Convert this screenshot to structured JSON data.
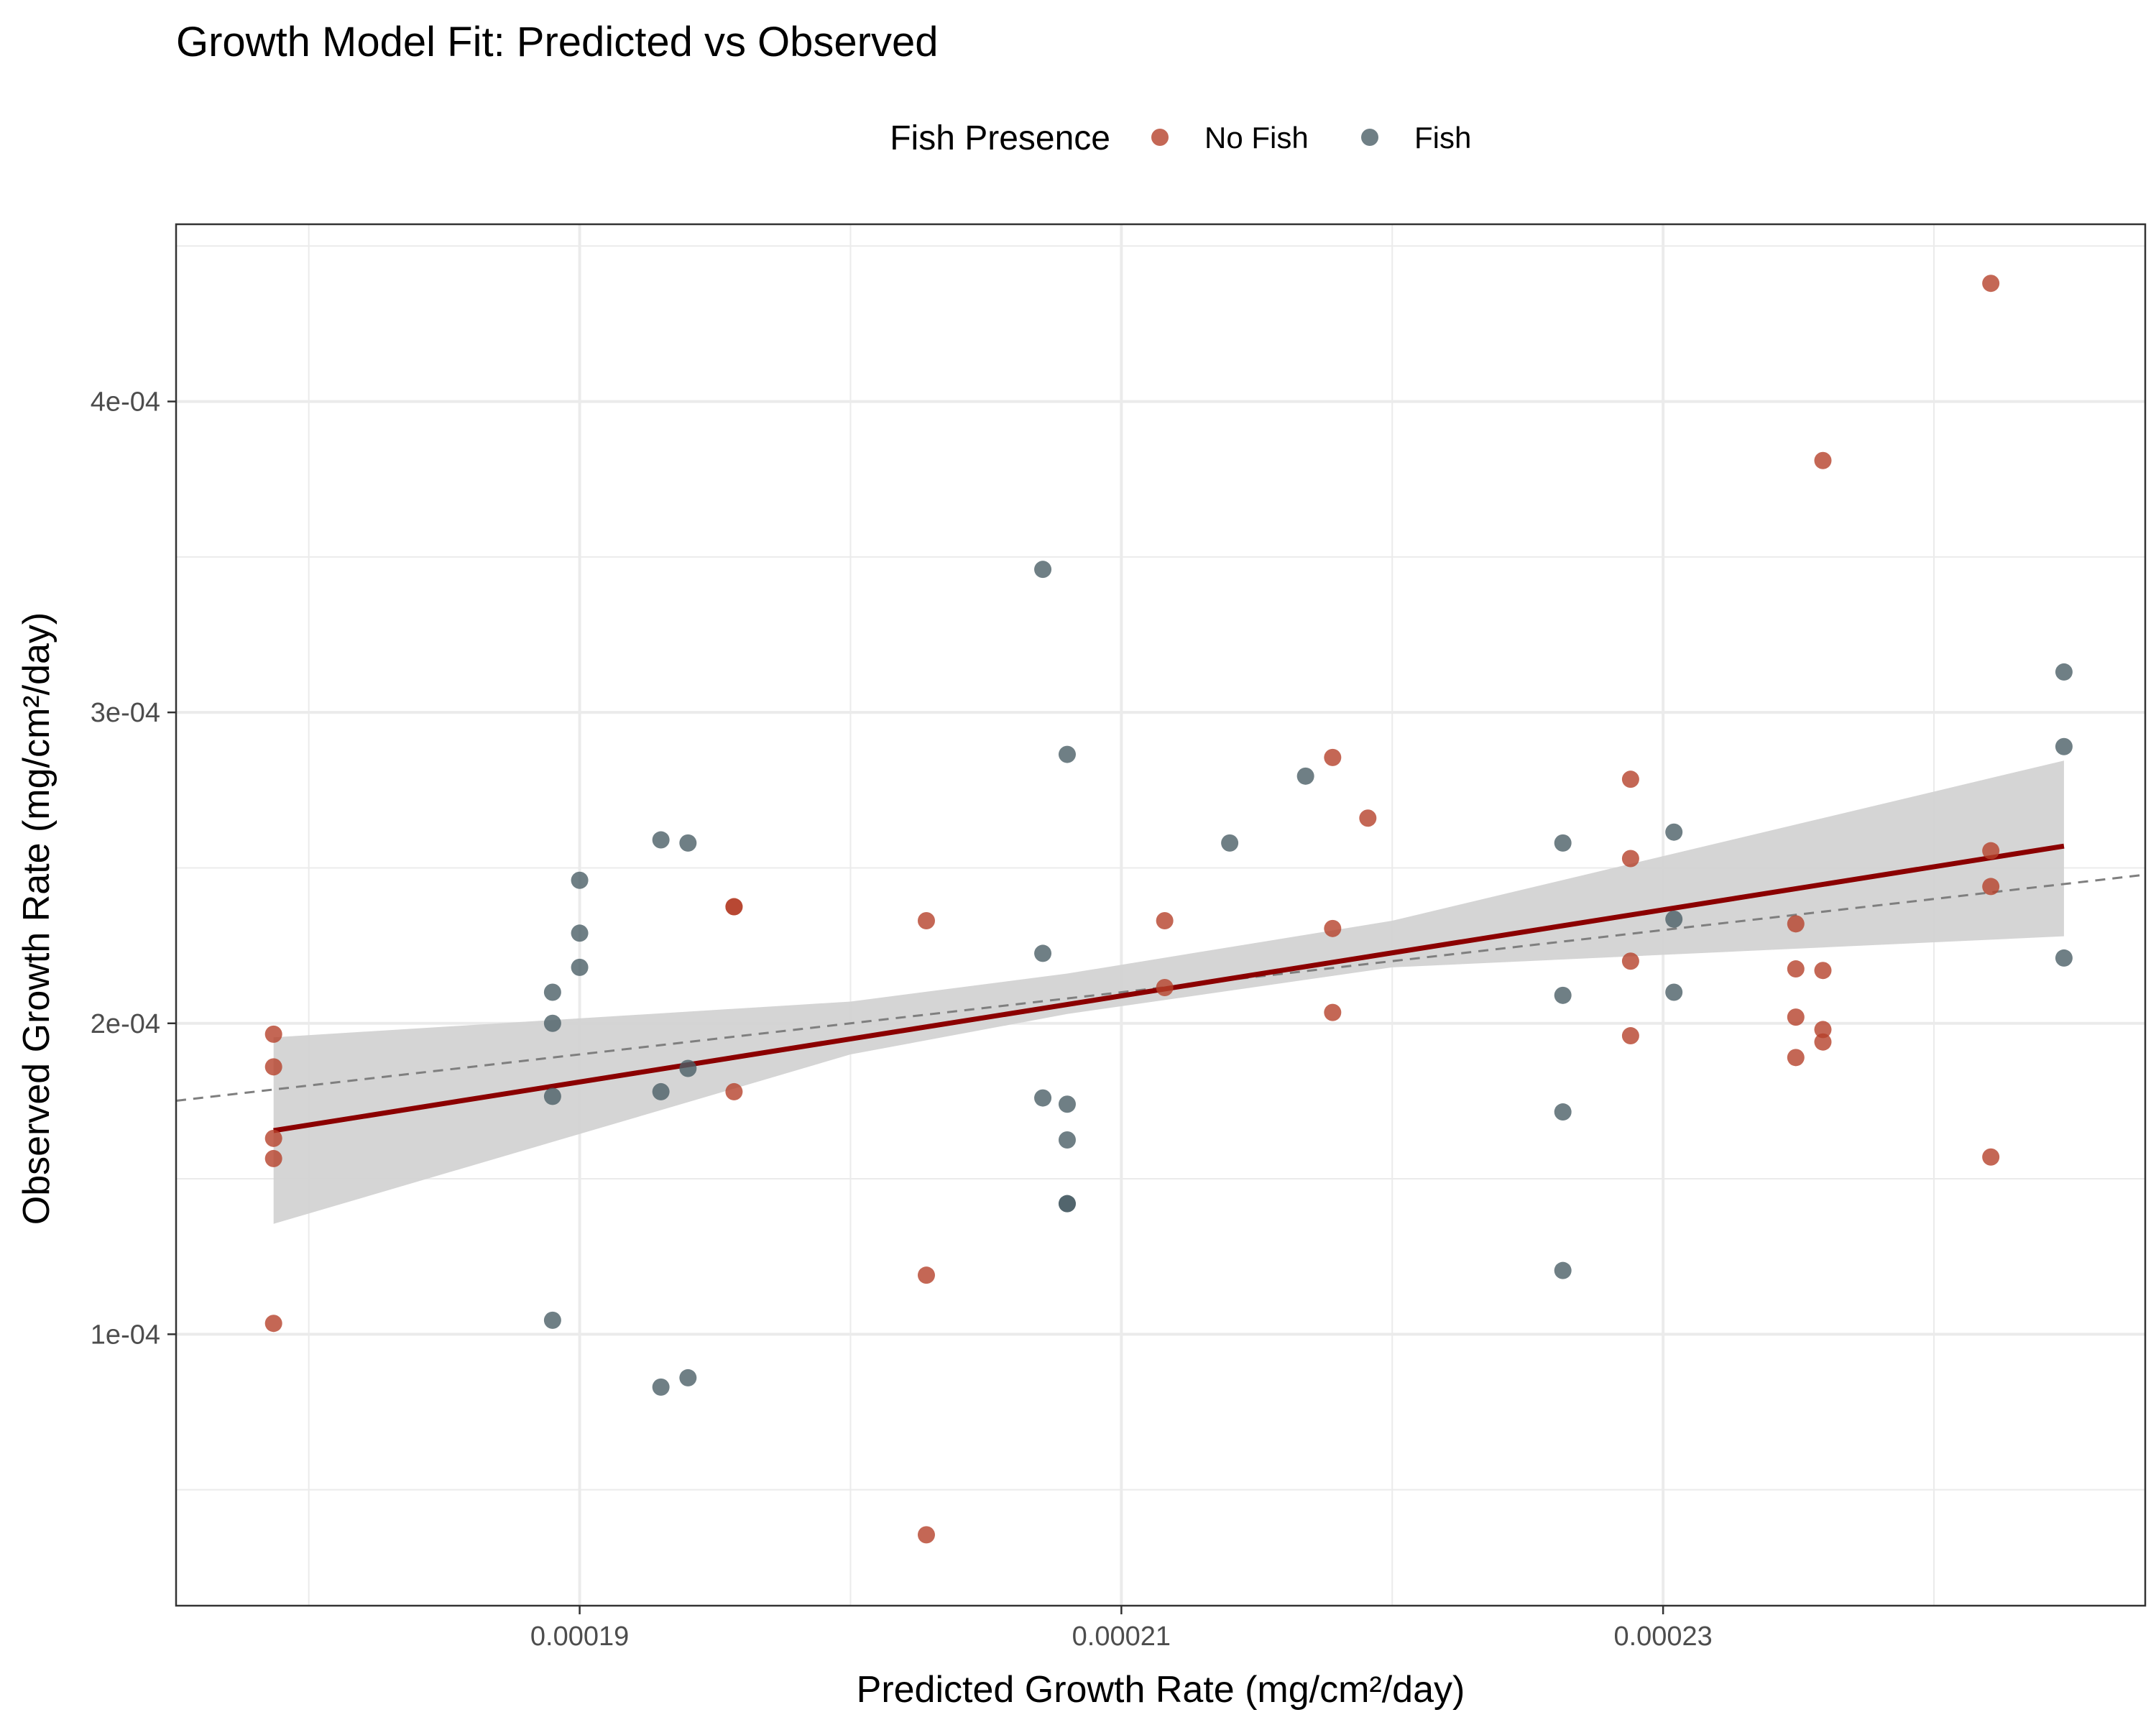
{
  "chart_data": {
    "type": "scatter",
    "title": "Growth Model Fit: Predicted vs Observed",
    "xlabel": "Predicted Growth Rate (mg/cm²/day)",
    "ylabel": "Observed Growth Rate (mg/cm²/day)",
    "xlim": [
      0.0001751,
      0.0002478
    ],
    "ylim": [
      1.27e-05,
      0.000457
    ],
    "x_ticks": [
      {
        "value": 0.00019,
        "label": "0.00019"
      },
      {
        "value": 0.00021,
        "label": "0.00021"
      },
      {
        "value": 0.00023,
        "label": "0.00023"
      }
    ],
    "y_ticks": [
      {
        "value": 0.0001,
        "label": "1e-04"
      },
      {
        "value": 0.0002,
        "label": "2e-04"
      },
      {
        "value": 0.0003,
        "label": "3e-04"
      },
      {
        "value": 0.0004,
        "label": "4e-04"
      }
    ],
    "grid": true,
    "legend": {
      "title": "Fish Presence",
      "position": "top"
    },
    "series": [
      {
        "name": "No Fish",
        "color": "#B5412B",
        "points": [
          [
            0.0001787,
            0.0001965
          ],
          [
            0.0001787,
            0.000186
          ],
          [
            0.0001787,
            0.000163
          ],
          [
            0.0001787,
            0.0001565
          ],
          [
            0.0001787,
            0.0001035
          ],
          [
            0.0001957,
            0.0002375
          ],
          [
            0.0001957,
            0.0002375
          ],
          [
            0.0001957,
            0.000178
          ],
          [
            0.0002028,
            0.000233
          ],
          [
            0.0002028,
            0.000119
          ],
          [
            0.0002028,
            3.55e-05
          ],
          [
            0.0002116,
            0.000233
          ],
          [
            0.0002116,
            0.0002115
          ],
          [
            0.0002178,
            0.0002855
          ],
          [
            0.0002178,
            0.0002305
          ],
          [
            0.0002178,
            0.0002035
          ],
          [
            0.0002191,
            0.000266
          ],
          [
            0.0002288,
            0.0002785
          ],
          [
            0.0002288,
            0.000253
          ],
          [
            0.0002288,
            0.00022
          ],
          [
            0.0002288,
            0.000196
          ],
          [
            0.0002349,
            0.000232
          ],
          [
            0.0002349,
            0.0002175
          ],
          [
            0.0002349,
            0.000202
          ],
          [
            0.0002349,
            0.000189
          ],
          [
            0.0002359,
            0.000381
          ],
          [
            0.0002359,
            0.000217
          ],
          [
            0.0002359,
            0.000198
          ],
          [
            0.0002359,
            0.000194
          ],
          [
            0.0002421,
            0.000438
          ],
          [
            0.0002421,
            0.0002555
          ],
          [
            0.0002421,
            0.000244
          ],
          [
            0.0002421,
            0.000157
          ]
        ]
      },
      {
        "name": "Fish",
        "color": "#4B5F66",
        "points": [
          [
            0.000189,
            0.00021
          ],
          [
            0.000189,
            0.0002
          ],
          [
            0.000189,
            0.0001765
          ],
          [
            0.000189,
            0.0001045
          ],
          [
            0.00019,
            0.000246
          ],
          [
            0.00019,
            0.000229
          ],
          [
            0.00019,
            0.000218
          ],
          [
            0.000193,
            0.000259
          ],
          [
            0.000193,
            0.000178
          ],
          [
            0.000193,
            8.3e-05
          ],
          [
            0.000194,
            0.000258
          ],
          [
            0.000194,
            0.0001855
          ],
          [
            0.000194,
            8.6e-05
          ],
          [
            0.0002071,
            0.000346
          ],
          [
            0.0002071,
            0.0002225
          ],
          [
            0.0002071,
            0.000176
          ],
          [
            0.000208,
            0.0002865
          ],
          [
            0.000208,
            0.000174
          ],
          [
            0.000208,
            0.0001625
          ],
          [
            0.000208,
            0.000142
          ],
          [
            0.000208,
            0.000142
          ],
          [
            0.000214,
            0.000258
          ],
          [
            0.0002168,
            0.0002795
          ],
          [
            0.0002263,
            0.000258
          ],
          [
            0.0002263,
            0.000209
          ],
          [
            0.0002263,
            0.0001715
          ],
          [
            0.0002263,
            0.0001205
          ],
          [
            0.0002304,
            0.0002615
          ],
          [
            0.0002304,
            0.0002335
          ],
          [
            0.0002304,
            0.00021
          ],
          [
            0.0002448,
            0.000313
          ],
          [
            0.0002448,
            0.000289
          ],
          [
            0.0002448,
            0.000221
          ]
        ]
      }
    ],
    "reference_line": {
      "style": "dashed",
      "color": "#7f7f7f",
      "x": [
        0.0001751,
        0.0002478
      ],
      "y": [
        0.0001751,
        0.0002478
      ]
    },
    "regression_fit": {
      "color": "#8B0000",
      "band_color": "#D3D3D3",
      "x": [
        0.0001787,
        0.0002448
      ],
      "y": [
        0.0001655,
        0.000257
      ],
      "band": [
        {
          "x": 0.0001787,
          "lower": 0.0001355,
          "upper": 0.0001955
        },
        {
          "x": 0.0002,
          "lower": 0.00019,
          "upper": 0.000207
        },
        {
          "x": 0.000208,
          "lower": 0.000203,
          "upper": 0.000216
        },
        {
          "x": 0.00022,
          "lower": 0.000218,
          "upper": 0.000233
        },
        {
          "x": 0.0002448,
          "lower": 0.000228,
          "upper": 0.0002845
        }
      ]
    }
  }
}
